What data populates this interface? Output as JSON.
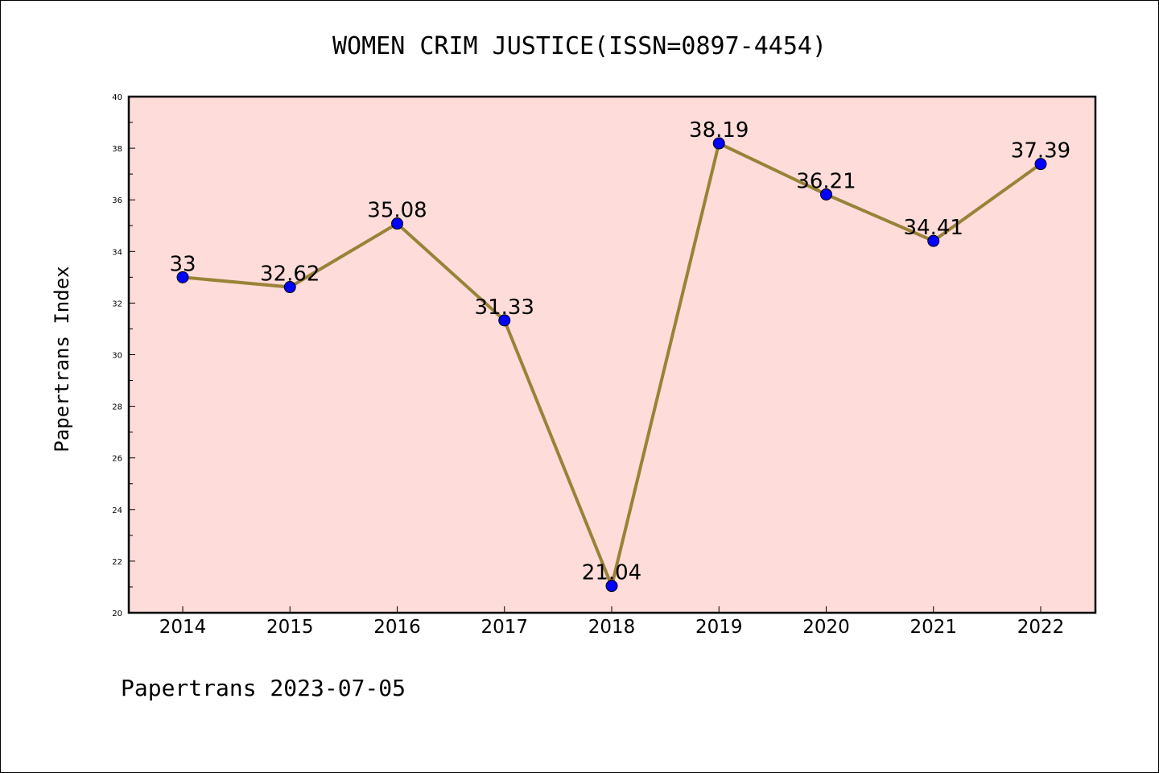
{
  "chart_data": {
    "type": "line",
    "title": "WOMEN CRIM JUSTICE(ISSN=0897-4454)",
    "ylabel": "Papertrans Index",
    "xlabel": "",
    "categories": [
      "2014",
      "2015",
      "2016",
      "2017",
      "2018",
      "2019",
      "2020",
      "2021",
      "2022"
    ],
    "values": [
      33,
      32.62,
      35.08,
      31.33,
      21.04,
      38.19,
      36.21,
      34.41,
      37.39
    ],
    "data_labels": [
      "33",
      "32.62",
      "35.08",
      "31.33",
      "21.04",
      "38.19",
      "36.21",
      "34.41",
      "37.39"
    ],
    "ylim": [
      20,
      40
    ],
    "yticks": [
      "20",
      "22",
      "24",
      "26",
      "28",
      "30",
      "32",
      "34",
      "36",
      "38",
      "40"
    ],
    "grid": false,
    "colors": {
      "plot_background": "#fddcda",
      "line": "#9a8237",
      "marker": "#0000ff"
    }
  },
  "footer": "Papertrans 2023-07-05"
}
